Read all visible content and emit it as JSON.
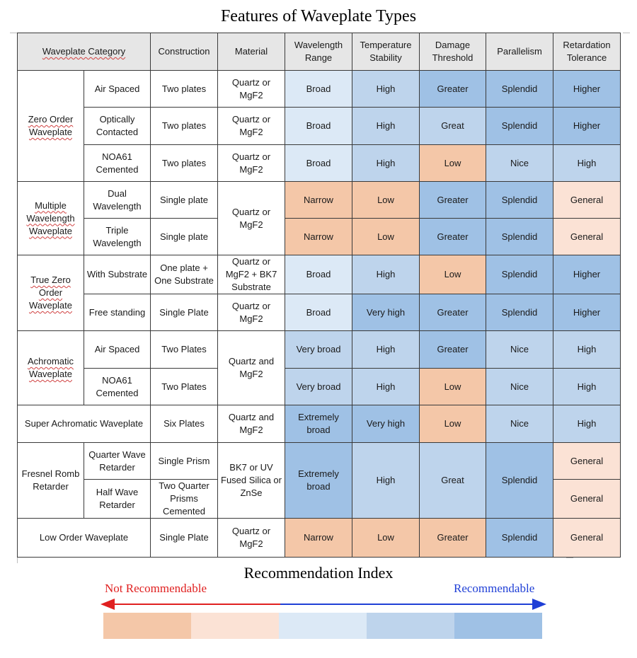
{
  "title": "Features of Waveplate Types",
  "table": {
    "headers": [
      "Waveplate Category",
      "Construction",
      "Material",
      "Wavelength Range",
      "Temperature Stability",
      "Damage Threshold",
      "Parallelism",
      "Retardation Tolerance"
    ],
    "groups": {
      "zero_order": "Zero Order Waveplate",
      "multiple_wavelength": "Multiple Wavelength Waveplate",
      "true_zero_order": "True Zero Order Waveplate",
      "achromatic": "Achromatic Waveplate",
      "super_achromatic": "Super Achromatic Waveplate",
      "fresnel_rhomb": "Fresnel Romb Retarder",
      "low_order": "Low Order Waveplate"
    },
    "rows": [
      {
        "sub": "Air Spaced",
        "construction": "Two plates",
        "material": "Quartz or MgF2",
        "range": "Broad",
        "temp": "High",
        "damage": "Greater",
        "parallel": "Splendid",
        "tol": "Higher"
      },
      {
        "sub": "Optically Contacted",
        "construction": "Two plates",
        "material": "Quartz or MgF2",
        "range": "Broad",
        "temp": "High",
        "damage": "Great",
        "parallel": "Splendid",
        "tol": "Higher"
      },
      {
        "sub": "NOA61 Cemented",
        "construction": "Two plates",
        "material": "Quartz or MgF2",
        "range": "Broad",
        "temp": "High",
        "damage": "Low",
        "parallel": "Nice",
        "tol": "High"
      },
      {
        "sub": "Dual Wavelength",
        "construction": "Single plate",
        "material": "Quartz or MgF2",
        "range": "Narrow",
        "temp": "Low",
        "damage": "Greater",
        "parallel": "Splendid",
        "tol": "General"
      },
      {
        "sub": "Triple Wavelength",
        "construction": "Single plate",
        "range": "Narrow",
        "temp": "Low",
        "damage": "Greater",
        "parallel": "Splendid",
        "tol": "General"
      },
      {
        "sub": "With Substrate",
        "construction": "One plate + One Substrate",
        "material": "Quartz or MgF2 + BK7 Substrate",
        "range": "Broad",
        "temp": "High",
        "damage": "Low",
        "parallel": "Splendid",
        "tol": "Higher"
      },
      {
        "sub": "Free standing",
        "construction": "Single Plate",
        "material": "Quartz or MgF2",
        "range": "Broad",
        "temp": "Very high",
        "damage": "Greater",
        "parallel": "Splendid",
        "tol": "Higher"
      },
      {
        "sub": "Air Spaced",
        "construction": "Two Plates",
        "material": "Quartz and MgF2",
        "range": "Very broad",
        "temp": "High",
        "damage": "Greater",
        "parallel": "Nice",
        "tol": "High"
      },
      {
        "sub": "NOA61 Cemented",
        "construction": "Two Plates",
        "range": "Very broad",
        "temp": "High",
        "damage": "Low",
        "parallel": "Nice",
        "tol": "High"
      },
      {
        "construction": "Six Plates",
        "material": "Quartz and MgF2",
        "range": "Extremely broad",
        "temp": "Very high",
        "damage": "Low",
        "parallel": "Nice",
        "tol": "High"
      },
      {
        "sub": "Quarter Wave Retarder",
        "construction": "Single Prism",
        "material": "BK7 or UV Fused Silica or ZnSe",
        "range": "Extremely broad",
        "temp": "High",
        "damage": "Great",
        "parallel": "Splendid",
        "tol": "General"
      },
      {
        "sub": "Half Wave Retarder",
        "construction": "Two Quarter Prisms Cemented",
        "tol": "General"
      },
      {
        "construction": "Single Plate",
        "material": "Quartz or MgF2",
        "range": "Narrow",
        "temp": "Low",
        "damage": "Greater",
        "parallel": "Splendid",
        "tol": "General"
      }
    ]
  },
  "legend": {
    "title": "Recommendation Index",
    "left_label": "Not Recommendable",
    "right_label": "Recommendable",
    "left_color": "#e02020",
    "right_color": "#1f3fd6",
    "scale_colors": [
      "#f4c7a8",
      "#fbe2d5",
      "#dce9f6",
      "#bed4ec",
      "#9fc1e5"
    ]
  }
}
